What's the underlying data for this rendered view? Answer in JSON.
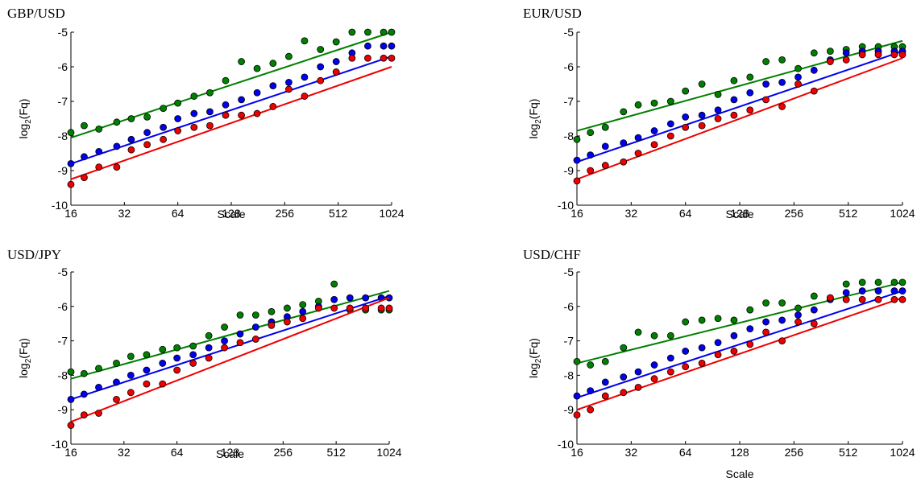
{
  "colors": {
    "green": "#008000",
    "blue": "#0000ee",
    "red": "#ee0000",
    "axis": "#000000"
  },
  "chart_data": [
    {
      "type": "scatter",
      "title": "GBP/USD",
      "xlabel": "Scale",
      "ylabel_main": "log",
      "ylabel_sub": "2",
      "ylabel_tail": "(Fq)",
      "x_scale": "log2",
      "xlim": [
        16,
        1024
      ],
      "ylim": [
        -10,
        -5
      ],
      "xticks": [
        16,
        32,
        64,
        128,
        256,
        512,
        1024
      ],
      "xtick_labels": [
        "16",
        "32",
        "64",
        "128",
        "256",
        "512",
        "1024"
      ],
      "yticks": [
        -10,
        -9,
        -8,
        -7,
        -6,
        -5
      ],
      "ytick_labels": [
        "-10",
        "-9",
        "-8",
        "-7",
        "-6",
        "-5"
      ],
      "series": [
        {
          "color": "green",
          "x": [
            16,
            19,
            23,
            29,
            35,
            43,
            53,
            64,
            79,
            97,
            119,
            146,
            179,
            220,
            270,
            331,
            407,
            499,
            613,
            752,
            923,
            1024
          ],
          "y": [
            -7.9,
            -7.7,
            -7.8,
            -7.6,
            -7.5,
            -7.45,
            -7.2,
            -7.05,
            -6.85,
            -6.75,
            -6.4,
            -5.85,
            -6.05,
            -5.9,
            -5.7,
            -5.25,
            -5.5,
            -5.28,
            -5.0,
            -5.0,
            -5.0,
            -5.0
          ],
          "fit": [
            -8.05,
            -5.0
          ]
        },
        {
          "color": "blue",
          "x": [
            16,
            19,
            23,
            29,
            35,
            43,
            53,
            64,
            79,
            97,
            119,
            146,
            179,
            220,
            270,
            331,
            407,
            499,
            613,
            752,
            923,
            1024
          ],
          "y": [
            -8.8,
            -8.6,
            -8.45,
            -8.3,
            -8.1,
            -7.9,
            -7.75,
            -7.5,
            -7.35,
            -7.3,
            -7.1,
            -6.95,
            -6.75,
            -6.55,
            -6.45,
            -6.3,
            -6.0,
            -5.85,
            -5.6,
            -5.4,
            -5.4,
            -5.4
          ],
          "fit": [
            -8.8,
            -5.7
          ]
        },
        {
          "color": "red",
          "x": [
            16,
            19,
            23,
            29,
            35,
            43,
            53,
            64,
            79,
            97,
            119,
            146,
            179,
            220,
            270,
            331,
            407,
            499,
            613,
            752,
            923,
            1024
          ],
          "y": [
            -9.4,
            -9.2,
            -8.9,
            -8.9,
            -8.4,
            -8.25,
            -8.1,
            -7.85,
            -7.75,
            -7.7,
            -7.4,
            -7.4,
            -7.35,
            -7.15,
            -6.65,
            -6.85,
            -6.4,
            -6.15,
            -5.75,
            -5.75,
            -5.75,
            -5.75
          ],
          "fit": [
            -9.25,
            -6.0
          ]
        }
      ]
    },
    {
      "type": "scatter",
      "title": "EUR/USD",
      "xlabel": "Scale",
      "ylabel_main": "log",
      "ylabel_sub": "2",
      "ylabel_tail": "(Fq)",
      "x_scale": "log2",
      "xlim": [
        16,
        1024
      ],
      "ylim": [
        -10,
        -5
      ],
      "xticks": [
        16,
        32,
        64,
        128,
        256,
        512,
        1024
      ],
      "xtick_labels": [
        "16",
        "32",
        "64",
        "128",
        "256",
        "512",
        "1024"
      ],
      "yticks": [
        -10,
        -9,
        -8,
        -7,
        -6,
        -5
      ],
      "ytick_labels": [
        "-10",
        "-9",
        "-8",
        "-7",
        "-6",
        "-5"
      ],
      "series": [
        {
          "color": "green",
          "x": [
            16,
            19,
            23,
            29,
            35,
            43,
            53,
            64,
            79,
            97,
            119,
            146,
            179,
            220,
            270,
            331,
            407,
            499,
            613,
            752,
            923,
            1024
          ],
          "y": [
            -8.1,
            -7.9,
            -7.75,
            -7.3,
            -7.1,
            -7.05,
            -7.0,
            -6.7,
            -6.5,
            -6.8,
            -6.4,
            -6.3,
            -5.85,
            -5.8,
            -6.05,
            -5.6,
            -5.55,
            -5.5,
            -5.42,
            -5.42,
            -5.42,
            -5.42
          ],
          "fit": [
            -7.85,
            -5.25
          ]
        },
        {
          "color": "blue",
          "x": [
            16,
            19,
            23,
            29,
            35,
            43,
            53,
            64,
            79,
            97,
            119,
            146,
            179,
            220,
            270,
            331,
            407,
            499,
            613,
            752,
            923,
            1024
          ],
          "y": [
            -8.7,
            -8.55,
            -8.3,
            -8.2,
            -8.05,
            -7.85,
            -7.65,
            -7.45,
            -7.4,
            -7.25,
            -6.95,
            -6.75,
            -6.5,
            -6.45,
            -6.3,
            -6.1,
            -5.8,
            -5.6,
            -5.55,
            -5.55,
            -5.55,
            -5.55
          ],
          "fit": [
            -8.75,
            -5.55
          ]
        },
        {
          "color": "red",
          "x": [
            16,
            19,
            23,
            29,
            35,
            43,
            53,
            64,
            79,
            97,
            119,
            146,
            179,
            220,
            270,
            331,
            407,
            499,
            613,
            752,
            923,
            1024
          ],
          "y": [
            -9.3,
            -9.0,
            -8.85,
            -8.75,
            -8.5,
            -8.25,
            -8.0,
            -7.75,
            -7.7,
            -7.5,
            -7.4,
            -7.25,
            -6.95,
            -7.15,
            -6.5,
            -6.7,
            -5.85,
            -5.8,
            -5.65,
            -5.65,
            -5.65,
            -5.65
          ],
          "fit": [
            -9.25,
            -5.75
          ]
        }
      ]
    },
    {
      "type": "scatter",
      "title": "USD/JPY",
      "xlabel": "Scale",
      "ylabel_main": "log",
      "ylabel_sub": "2",
      "ylabel_tail": "(Fq)",
      "x_scale": "log2",
      "xlim": [
        16,
        1024
      ],
      "ylim": [
        -10,
        -5
      ],
      "xticks": [
        16,
        32,
        64,
        128,
        256,
        512,
        1024
      ],
      "xtick_labels": [
        "16",
        "32",
        "64",
        "128",
        "256",
        "512",
        "1024"
      ],
      "yticks": [
        -10,
        -9,
        -8,
        -7,
        -6,
        -5
      ],
      "ytick_labels": [
        "-10",
        "-9",
        "-8",
        "-7",
        "-6",
        "-5"
      ],
      "series": [
        {
          "color": "green",
          "x": [
            16,
            19,
            23,
            29,
            35,
            43,
            53,
            64,
            79,
            97,
            119,
            146,
            179,
            220,
            270,
            331,
            407,
            499,
            613,
            752,
            923,
            1024
          ],
          "y": [
            -7.9,
            -7.95,
            -7.8,
            -7.65,
            -7.45,
            -7.4,
            -7.25,
            -7.2,
            -7.15,
            -6.85,
            -6.6,
            -6.25,
            -6.25,
            -6.15,
            -6.05,
            -5.95,
            -5.85,
            -5.35,
            -6.1,
            -6.1,
            -6.1,
            -6.1
          ],
          "fit": [
            -8.1,
            -5.55
          ]
        },
        {
          "color": "blue",
          "x": [
            16,
            19,
            23,
            29,
            35,
            43,
            53,
            64,
            79,
            97,
            119,
            146,
            179,
            220,
            270,
            331,
            407,
            499,
            613,
            752,
            923,
            1024
          ],
          "y": [
            -8.7,
            -8.55,
            -8.35,
            -8.2,
            -8.0,
            -7.85,
            -7.65,
            -7.5,
            -7.4,
            -7.2,
            -7.0,
            -6.8,
            -6.6,
            -6.45,
            -6.3,
            -6.15,
            -6.0,
            -5.8,
            -5.75,
            -5.75,
            -5.75,
            -5.75
          ],
          "fit": [
            -8.7,
            -5.7
          ]
        },
        {
          "color": "red",
          "x": [
            16,
            19,
            23,
            29,
            35,
            43,
            53,
            64,
            79,
            97,
            119,
            146,
            179,
            220,
            270,
            331,
            407,
            499,
            613,
            752,
            923,
            1024
          ],
          "y": [
            -9.45,
            -9.15,
            -9.1,
            -8.7,
            -8.5,
            -8.25,
            -8.25,
            -7.85,
            -7.65,
            -7.5,
            -7.2,
            -7.05,
            -6.95,
            -6.55,
            -6.45,
            -6.35,
            -6.05,
            -6.05,
            -6.05,
            -6.05,
            -6.05,
            -6.05
          ],
          "fit": [
            -9.35,
            -5.75
          ]
        }
      ]
    },
    {
      "type": "scatter",
      "title": "USD/CHF",
      "xlabel": "Scale",
      "ylabel_main": "log",
      "ylabel_sub": "2",
      "ylabel_tail": "(Fq)",
      "x_scale": "log2",
      "xlim": [
        16,
        1024
      ],
      "ylim": [
        -10,
        -5
      ],
      "xticks": [
        16,
        32,
        64,
        128,
        256,
        512,
        1024
      ],
      "xtick_labels": [
        "16",
        "32",
        "64",
        "128",
        "256",
        "512",
        "1024"
      ],
      "yticks": [
        -10,
        -9,
        -8,
        -7,
        -6,
        -5
      ],
      "ytick_labels": [
        "-10",
        "-9",
        "-8",
        "-7",
        "-6",
        "-5"
      ],
      "series": [
        {
          "color": "green",
          "x": [
            16,
            19,
            23,
            29,
            35,
            43,
            53,
            64,
            79,
            97,
            119,
            146,
            179,
            220,
            270,
            331,
            407,
            499,
            613,
            752,
            923,
            1024
          ],
          "y": [
            -7.6,
            -7.7,
            -7.6,
            -7.2,
            -6.75,
            -6.85,
            -6.85,
            -6.45,
            -6.4,
            -6.35,
            -6.4,
            -6.1,
            -5.9,
            -5.9,
            -6.05,
            -5.7,
            -5.75,
            -5.35,
            -5.3,
            -5.3,
            -5.3,
            -5.3
          ],
          "fit": [
            -7.65,
            -5.3
          ]
        },
        {
          "color": "blue",
          "x": [
            16,
            19,
            23,
            29,
            35,
            43,
            53,
            64,
            79,
            97,
            119,
            146,
            179,
            220,
            270,
            331,
            407,
            499,
            613,
            752,
            923,
            1024
          ],
          "y": [
            -8.6,
            -8.45,
            -8.2,
            -8.05,
            -7.9,
            -7.7,
            -7.5,
            -7.3,
            -7.2,
            -7.05,
            -6.85,
            -6.65,
            -6.45,
            -6.4,
            -6.25,
            -6.1,
            -5.8,
            -5.6,
            -5.55,
            -5.55,
            -5.55,
            -5.55
          ],
          "fit": [
            -8.65,
            -5.55
          ]
        },
        {
          "color": "red",
          "x": [
            16,
            19,
            23,
            29,
            35,
            43,
            53,
            64,
            79,
            97,
            119,
            146,
            179,
            220,
            270,
            331,
            407,
            499,
            613,
            752,
            923,
            1024
          ],
          "y": [
            -9.15,
            -9.0,
            -8.6,
            -8.5,
            -8.35,
            -8.1,
            -7.9,
            -7.75,
            -7.65,
            -7.4,
            -7.3,
            -7.1,
            -6.75,
            -7.0,
            -6.45,
            -6.5,
            -5.75,
            -5.8,
            -5.8,
            -5.8,
            -5.8,
            -5.8
          ],
          "fit": [
            -9.0,
            -5.75
          ]
        }
      ]
    }
  ]
}
